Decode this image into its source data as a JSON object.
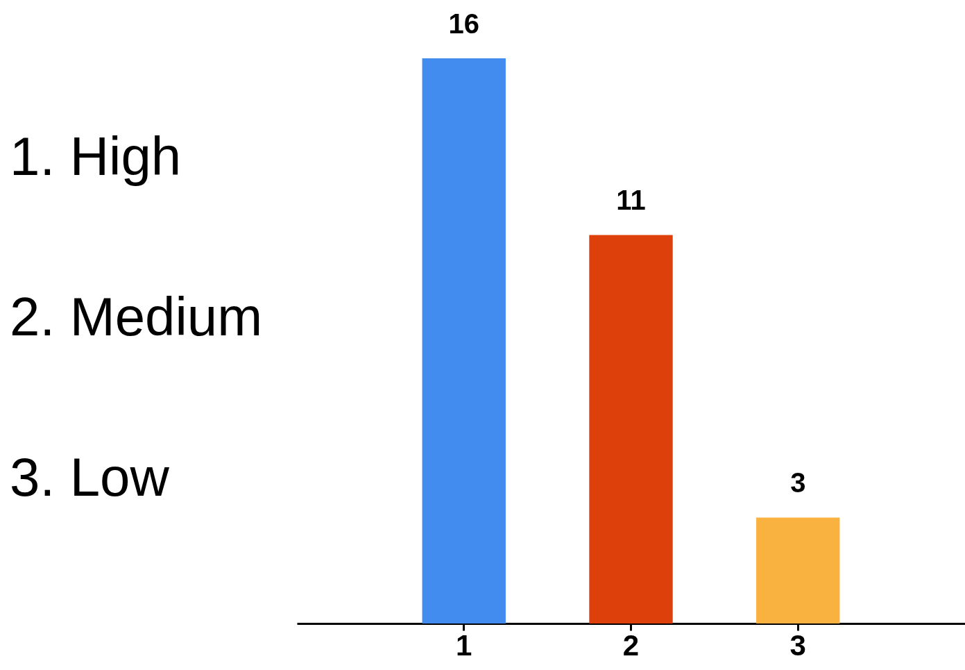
{
  "chart_data": {
    "type": "bar",
    "categories": [
      "1",
      "2",
      "3"
    ],
    "values": [
      16,
      11,
      3
    ],
    "colors": [
      "#428cf0",
      "#de400b",
      "#f9b240"
    ],
    "data_labels": true,
    "annotations": [
      "1. High",
      "2. Medium",
      "3. Low"
    ]
  }
}
